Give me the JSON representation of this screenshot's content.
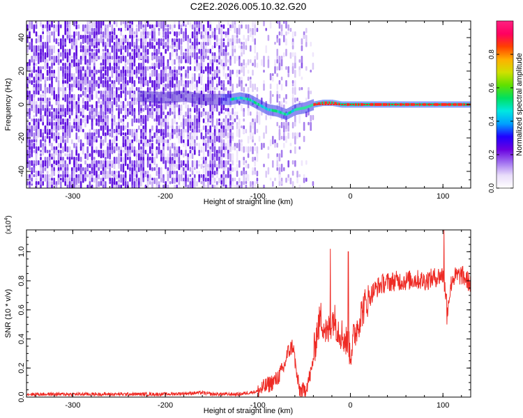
{
  "title": "C2E2.2026.005.10.32.G20",
  "colors": {
    "snr_line": "#ee2a24",
    "spectro_low": "#d8c8f4",
    "spectro_mid": "#7b2ee8",
    "axis": "#000000"
  },
  "chart_data": [
    {
      "type": "heatmap",
      "name": "spectrogram",
      "xlabel": "Height of straight line (km)",
      "ylabel": "Frequency (Hz)",
      "xlim": [
        -350,
        130
      ],
      "ylim": [
        -50,
        50
      ],
      "xticks": [
        -300,
        -200,
        -100,
        0,
        100
      ],
      "yticks": [
        -40,
        -20,
        0,
        20,
        40
      ],
      "x_tick_labels": [
        "-300",
        "-200",
        "-100",
        "0",
        "100"
      ],
      "y_tick_labels": [
        "-40",
        "-20",
        "0",
        "20",
        "40"
      ],
      "colorbar": {
        "label": "Normalized spectral amplitude",
        "range": [
          0,
          1
        ],
        "ticks": [
          0.0,
          0.2,
          0.4,
          0.6,
          0.8
        ],
        "tick_labels": [
          "0.0",
          "0.2",
          "0.4",
          "0.6",
          "0.8"
        ],
        "palette": [
          "#ffffff",
          "#e8dcfa",
          "#a070f0",
          "#6a00e0",
          "#2000ff",
          "#00a0ff",
          "#00e8e0",
          "#00e060",
          "#60e000",
          "#d0e000",
          "#ffb000",
          "#ff4000",
          "#ff0060",
          "#ff2080"
        ]
      },
      "ridge": {
        "x": [
          -230,
          -200,
          -180,
          -160,
          -140,
          -130,
          -120,
          -110,
          -100,
          -90,
          -80,
          -70,
          -60,
          -50,
          -40,
          -30,
          -20,
          -10,
          0,
          20,
          40,
          60,
          80,
          100,
          120,
          130
        ],
        "y": [
          5,
          4,
          5,
          3,
          3,
          3,
          4,
          3,
          0,
          -3,
          -4,
          -6,
          -3,
          -2,
          0,
          1,
          1,
          0,
          0,
          0,
          0,
          0,
          0,
          0,
          0,
          0
        ]
      }
    },
    {
      "type": "line",
      "name": "snr",
      "xlabel": "Height of straight line (km)",
      "ylabel": "SNR (10 * v/v)",
      "y_scale_label": "(x10",
      "y_scale_exponent": "4",
      "y_scale_close": ")",
      "xlim": [
        -350,
        130
      ],
      "ylim": [
        0,
        1.15
      ],
      "xticks": [
        -300,
        -200,
        -100,
        0,
        100
      ],
      "yticks": [
        0.0,
        0.2,
        0.4,
        0.6,
        0.8,
        1.0
      ],
      "x_tick_labels": [
        "-300",
        "-200",
        "-100",
        "0",
        "100"
      ],
      "y_tick_labels": [
        "0.0",
        "0.2",
        "0.4",
        "0.6",
        "0.8",
        "1.0"
      ],
      "series": [
        {
          "name": "SNR",
          "x": [
            -350,
            -300,
            -250,
            -200,
            -160,
            -150,
            -120,
            -100,
            -90,
            -80,
            -72,
            -68,
            -62,
            -58,
            -55,
            -50,
            -46,
            -42,
            -40,
            -36,
            -32,
            -28,
            -25,
            -22,
            -18,
            -14,
            -10,
            -6,
            -2,
            0,
            4,
            8,
            12,
            16,
            20,
            25,
            30,
            35,
            40,
            50,
            60,
            70,
            80,
            90,
            100,
            105,
            110,
            120,
            130
          ],
          "y": [
            0.02,
            0.02,
            0.02,
            0.02,
            0.03,
            0.02,
            0.02,
            0.04,
            0.08,
            0.12,
            0.2,
            0.3,
            0.36,
            0.15,
            0.05,
            0.04,
            0.1,
            0.18,
            0.28,
            0.45,
            0.55,
            0.48,
            0.42,
            0.5,
            0.55,
            0.48,
            0.44,
            0.4,
            0.35,
            0.3,
            0.42,
            0.5,
            0.58,
            0.64,
            0.68,
            0.73,
            0.76,
            0.78,
            0.79,
            0.8,
            0.8,
            0.81,
            0.8,
            0.82,
            0.84,
            0.62,
            0.82,
            0.84,
            0.78
          ]
        }
      ]
    }
  ]
}
